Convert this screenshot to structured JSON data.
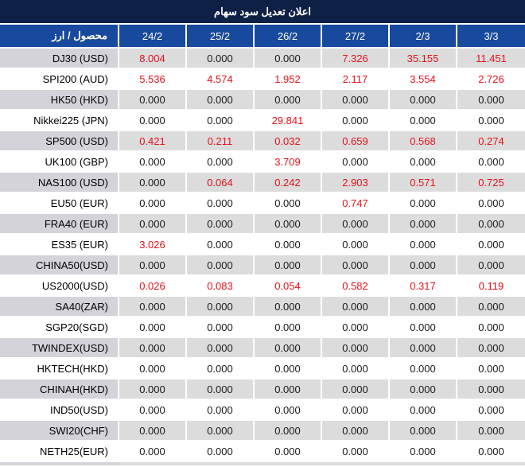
{
  "title": "اعلان تعديل سود سهام",
  "colors": {
    "title-bar-bg": "#0e2045",
    "header-bg": "#17499e",
    "header-text": "#ffffff",
    "row-alt-bg": "#dcdcdc",
    "row-alt-name-bg": "#d3d3d9",
    "value-red": "#e8111a",
    "value-black": "#1a1a1a"
  },
  "table": {
    "corner_header": "محصول / ارز",
    "zero_value": "0.000",
    "date_columns": [
      "24/2",
      "25/2",
      "26/2",
      "27/2",
      "2/3",
      "3/3"
    ],
    "rows": [
      {
        "name": "DJ30 (USD)",
        "values": [
          "8.004",
          "0.000",
          "0.000",
          "7.326",
          "35.155",
          "11.451"
        ]
      },
      {
        "name": "SPI200 (AUD)",
        "values": [
          "5.536",
          "4.574",
          "1.952",
          "2.117",
          "3.554",
          "2.726"
        ]
      },
      {
        "name": "HK50 (HKD)",
        "values": [
          "0.000",
          "0.000",
          "0.000",
          "0.000",
          "0.000",
          "0.000"
        ]
      },
      {
        "name": "Nikkei225 (JPN)",
        "values": [
          "0.000",
          "0.000",
          "29.841",
          "0.000",
          "0.000",
          "0.000"
        ]
      },
      {
        "name": "SP500 (USD)",
        "values": [
          "0.421",
          "0.211",
          "0.032",
          "0.659",
          "0.568",
          "0.274"
        ]
      },
      {
        "name": "UK100 (GBP)",
        "values": [
          "0.000",
          "0.000",
          "3.709",
          "0.000",
          "0.000",
          "0.000"
        ]
      },
      {
        "name": "NAS100 (USD)",
        "values": [
          "0.000",
          "0.064",
          "0.242",
          "2.903",
          "0.571",
          "0.725"
        ]
      },
      {
        "name": "EU50 (EUR)",
        "values": [
          "0.000",
          "0.000",
          "0.000",
          "0.747",
          "0.000",
          "0.000"
        ]
      },
      {
        "name": "FRA40 (EUR)",
        "values": [
          "0.000",
          "0.000",
          "0.000",
          "0.000",
          "0.000",
          "0.000"
        ]
      },
      {
        "name": "ES35 (EUR)",
        "values": [
          "3.026",
          "0.000",
          "0.000",
          "0.000",
          "0.000",
          "0.000"
        ]
      },
      {
        "name": "CHINA50(USD)",
        "values": [
          "0.000",
          "0.000",
          "0.000",
          "0.000",
          "0.000",
          "0.000"
        ]
      },
      {
        "name": "US2000(USD)",
        "values": [
          "0.026",
          "0.083",
          "0.054",
          "0.582",
          "0.317",
          "0.119"
        ]
      },
      {
        "name": "SA40(ZAR)",
        "values": [
          "0.000",
          "0.000",
          "0.000",
          "0.000",
          "0.000",
          "0.000"
        ]
      },
      {
        "name": "SGP20(SGD)",
        "values": [
          "0.000",
          "0.000",
          "0.000",
          "0.000",
          "0.000",
          "0.000"
        ]
      },
      {
        "name": "TWINDEX(USD)",
        "values": [
          "0.000",
          "0.000",
          "0.000",
          "0.000",
          "0.000",
          "0.000"
        ]
      },
      {
        "name": "HKTECH(HKD)",
        "values": [
          "0.000",
          "0.000",
          "0.000",
          "0.000",
          "0.000",
          "0.000"
        ]
      },
      {
        "name": "CHINAH(HKD)",
        "values": [
          "0.000",
          "0.000",
          "0.000",
          "0.000",
          "0.000",
          "0.000"
        ]
      },
      {
        "name": "IND50(USD)",
        "values": [
          "0.000",
          "0.000",
          "0.000",
          "0.000",
          "0.000",
          "0.000"
        ]
      },
      {
        "name": "SWI20(CHF)",
        "values": [
          "0.000",
          "0.000",
          "0.000",
          "0.000",
          "0.000",
          "0.000"
        ]
      },
      {
        "name": "NETH25(EUR)",
        "values": [
          "0.000",
          "0.000",
          "0.000",
          "0.000",
          "0.000",
          "0.000"
        ]
      }
    ]
  }
}
